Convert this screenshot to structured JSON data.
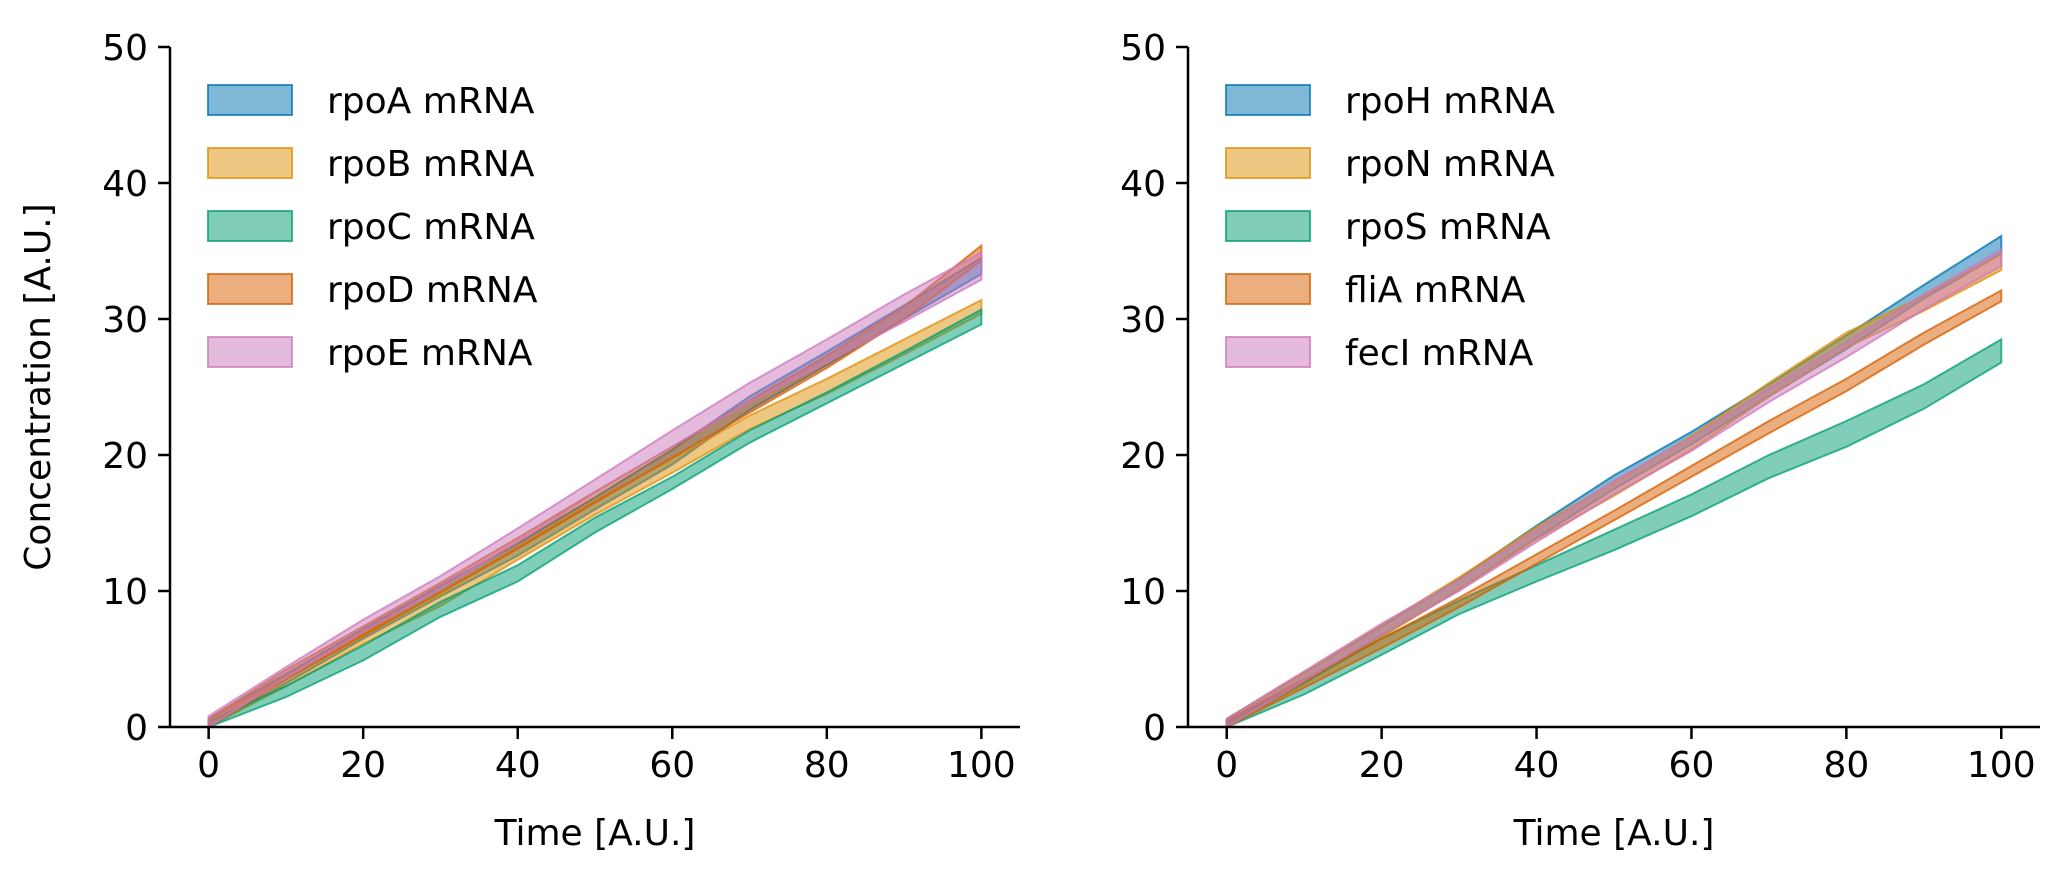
{
  "chart_data": [
    {
      "type": "area",
      "xlabel": "Time [A.U.]",
      "ylabel": "Concentration [A.U.]",
      "xlim": [
        -5,
        105
      ],
      "ylim": [
        0,
        50
      ],
      "xticks": [
        0,
        20,
        40,
        60,
        80,
        100
      ],
      "yticks": [
        0,
        10,
        20,
        30,
        40,
        50
      ],
      "grid": false,
      "legend_position": "upper-left",
      "series": [
        {
          "name": "rpoA mRNA",
          "color": "#0173b2",
          "x": [
            0,
            10,
            20,
            30,
            40,
            50,
            60,
            70,
            80,
            90,
            100
          ],
          "lower": [
            0.0,
            3.2,
            6.5,
            9.6,
            12.6,
            16.0,
            19.3,
            23.3,
            26.6,
            30.0,
            33.3
          ],
          "upper": [
            0.6,
            3.9,
            7.2,
            10.4,
            13.5,
            16.9,
            20.4,
            24.3,
            27.6,
            31.0,
            34.5
          ]
        },
        {
          "name": "rpoB mRNA",
          "color": "#de8f05",
          "x": [
            0,
            10,
            20,
            30,
            40,
            50,
            60,
            70,
            80,
            90,
            100
          ],
          "lower": [
            0.0,
            3.0,
            6.1,
            8.9,
            12.3,
            15.6,
            18.7,
            21.9,
            24.5,
            27.4,
            30.4
          ],
          "upper": [
            0.6,
            3.7,
            6.9,
            9.8,
            13.2,
            16.6,
            19.7,
            22.9,
            25.6,
            28.5,
            31.4
          ]
        },
        {
          "name": "rpoC mRNA",
          "color": "#029e73",
          "x": [
            0,
            10,
            20,
            30,
            40,
            50,
            60,
            70,
            80,
            90,
            100
          ],
          "lower": [
            0.0,
            2.2,
            4.9,
            8.1,
            10.7,
            14.3,
            17.5,
            20.9,
            23.8,
            26.7,
            29.6
          ],
          "upper": [
            0.4,
            3.0,
            6.0,
            9.2,
            11.9,
            15.4,
            18.4,
            21.8,
            24.6,
            27.6,
            30.7
          ]
        },
        {
          "name": "rpoD mRNA",
          "color": "#d55e00",
          "x": [
            0,
            10,
            20,
            30,
            40,
            50,
            60,
            70,
            80,
            90,
            100
          ],
          "lower": [
            0.0,
            3.5,
            6.7,
            9.9,
            13.1,
            16.5,
            19.8,
            23.1,
            26.4,
            30.0,
            34.3
          ],
          "upper": [
            0.6,
            4.2,
            7.4,
            10.6,
            13.9,
            17.3,
            20.6,
            24.0,
            27.3,
            30.9,
            35.4
          ]
        },
        {
          "name": "rpoE mRNA",
          "color": "#cc78bc",
          "x": [
            0,
            10,
            20,
            30,
            40,
            50,
            60,
            70,
            80,
            90,
            100
          ],
          "lower": [
            0.0,
            3.6,
            7.0,
            10.2,
            13.6,
            17.2,
            20.6,
            23.9,
            26.8,
            29.8,
            32.9
          ],
          "upper": [
            0.8,
            4.4,
            7.9,
            11.1,
            14.6,
            18.2,
            21.8,
            25.3,
            28.5,
            31.8,
            34.9
          ]
        }
      ]
    },
    {
      "type": "area",
      "xlabel": "Time [A.U.]",
      "ylabel": "",
      "xlim": [
        -5,
        105
      ],
      "ylim": [
        0,
        50
      ],
      "xticks": [
        0,
        20,
        40,
        60,
        80,
        100
      ],
      "yticks": [
        0,
        10,
        20,
        30,
        40,
        50
      ],
      "grid": false,
      "legend_position": "upper-left",
      "series": [
        {
          "name": "rpoH mRNA",
          "color": "#0173b2",
          "x": [
            0,
            10,
            20,
            30,
            40,
            50,
            60,
            70,
            80,
            90,
            100
          ],
          "lower": [
            0.0,
            3.3,
            6.7,
            10.1,
            13.9,
            17.5,
            20.8,
            24.3,
            27.8,
            31.5,
            34.8
          ],
          "upper": [
            0.6,
            4.0,
            7.4,
            10.9,
            14.8,
            18.5,
            21.7,
            25.2,
            28.8,
            32.5,
            36.1
          ]
        },
        {
          "name": "rpoN mRNA",
          "color": "#de8f05",
          "x": [
            0,
            10,
            20,
            30,
            40,
            50,
            60,
            70,
            80,
            90,
            100
          ],
          "lower": [
            0.0,
            3.2,
            6.6,
            10.1,
            13.8,
            17.0,
            20.4,
            24.3,
            27.9,
            30.6,
            33.6
          ],
          "upper": [
            0.6,
            4.0,
            7.5,
            11.0,
            14.7,
            18.0,
            21.4,
            25.3,
            29.0,
            31.7,
            34.8
          ]
        },
        {
          "name": "rpoS mRNA",
          "color": "#029e73",
          "x": [
            0,
            10,
            20,
            30,
            40,
            50,
            60,
            70,
            80,
            90,
            100
          ],
          "lower": [
            0.0,
            2.4,
            5.3,
            8.3,
            10.7,
            13.0,
            15.5,
            18.3,
            20.6,
            23.4,
            26.8
          ],
          "upper": [
            0.4,
            3.3,
            6.5,
            9.3,
            11.9,
            14.5,
            17.1,
            20.0,
            22.5,
            25.2,
            28.5
          ]
        },
        {
          "name": "fliA mRNA",
          "color": "#d55e00",
          "x": [
            0,
            10,
            20,
            30,
            40,
            50,
            60,
            70,
            80,
            90,
            100
          ],
          "lower": [
            0.0,
            2.9,
            5.8,
            8.8,
            12.0,
            15.2,
            18.4,
            21.6,
            24.7,
            28.1,
            31.3
          ],
          "upper": [
            0.5,
            3.5,
            6.5,
            9.5,
            12.7,
            15.9,
            19.2,
            22.5,
            25.6,
            29.0,
            32.1
          ]
        },
        {
          "name": "fecI mRNA",
          "color": "#cc78bc",
          "x": [
            0,
            10,
            20,
            30,
            40,
            50,
            60,
            70,
            80,
            90,
            100
          ],
          "lower": [
            0.0,
            3.4,
            6.8,
            10.0,
            13.6,
            17.1,
            20.3,
            23.9,
            27.2,
            30.7,
            33.9
          ],
          "upper": [
            0.6,
            4.1,
            7.6,
            10.8,
            14.5,
            18.1,
            21.3,
            24.9,
            28.3,
            31.8,
            35.1
          ]
        }
      ]
    }
  ]
}
